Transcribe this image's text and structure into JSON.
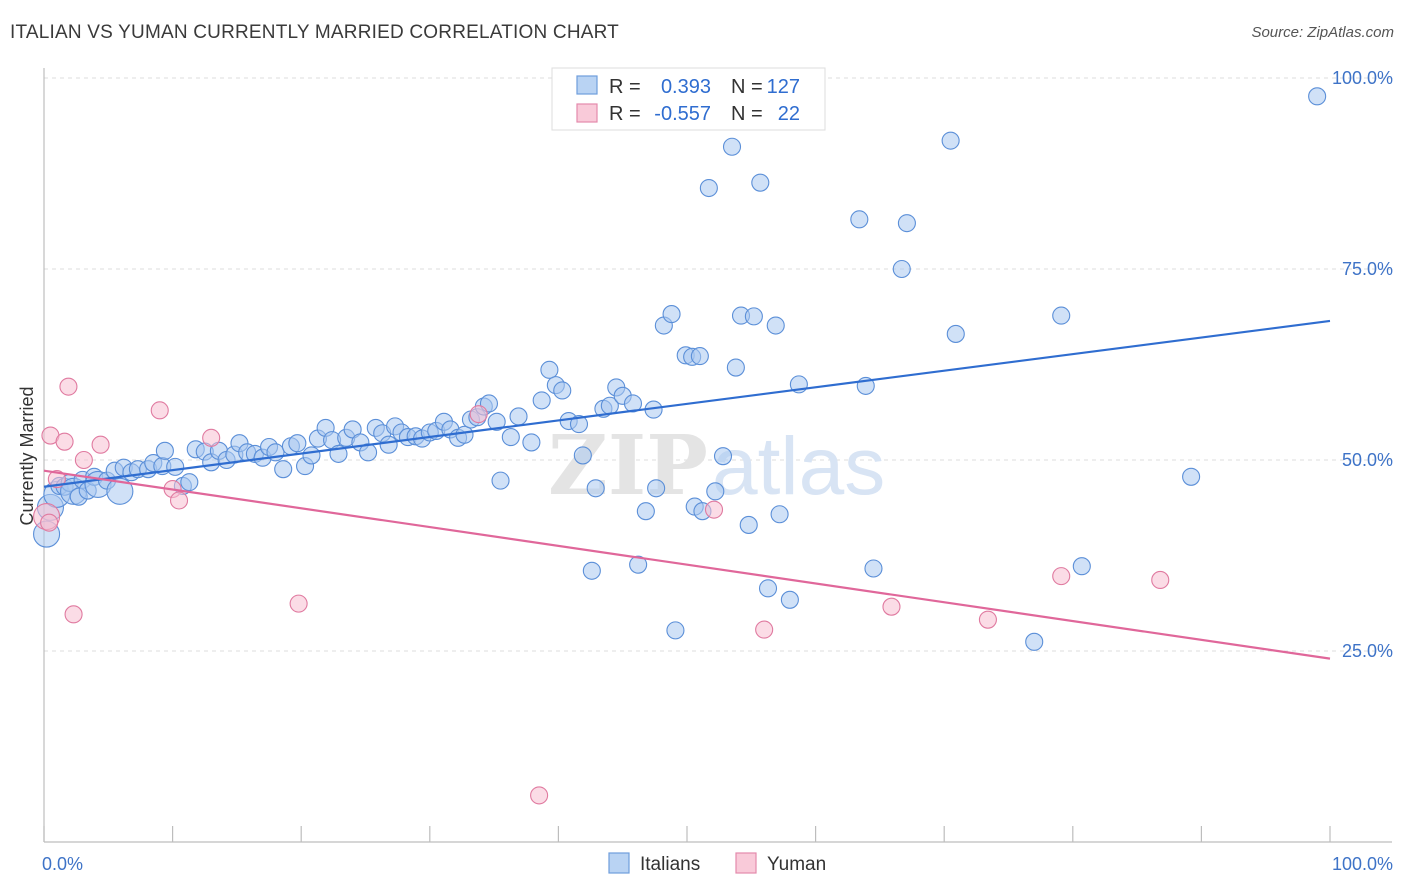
{
  "title": "ITALIAN VS YUMAN CURRENTLY MARRIED CORRELATION CHART",
  "source": "Source: ZipAtlas.com",
  "watermark": {
    "zip": "ZIP",
    "atlas": "atlas"
  },
  "colors": {
    "italians_fill": "#a9c8f0",
    "italians_stroke": "#5b8fd8",
    "italians_line": "#2f6dd0",
    "yuman_fill": "#f7c0d2",
    "yuman_stroke": "#e07aa0",
    "yuman_line": "#e0679a",
    "tick": "#3e73c7"
  },
  "legend_stats": [
    {
      "r_label": "R =",
      "r_value": "0.393",
      "n_label": "N =",
      "n_value": "127"
    },
    {
      "r_label": "R =",
      "r_value": "-0.557",
      "n_label": "N =",
      "n_value": "22"
    }
  ],
  "chart_data": {
    "type": "scatter",
    "title": "ITALIAN VS YUMAN CURRENTLY MARRIED CORRELATION CHART",
    "xlabel": "",
    "ylabel": "Currently Married",
    "xlim": [
      0,
      100
    ],
    "ylim": [
      0,
      100
    ],
    "x_tick_labels": [
      "0.0%",
      "100.0%"
    ],
    "y_tick_labels": [
      {
        "value": 25,
        "label": "25.0%"
      },
      {
        "value": 50,
        "label": "50.0%"
      },
      {
        "value": 75,
        "label": "75.0%"
      },
      {
        "value": 100,
        "label": "100.0%"
      }
    ],
    "grid": true,
    "legend_position": "bottom-center",
    "series": [
      {
        "name": "Italians",
        "trend": {
          "x": [
            0,
            100
          ],
          "y": [
            46.5,
            68.2
          ]
        },
        "points": [
          [
            0.2,
            40.3,
            2
          ],
          [
            0.5,
            43.8,
            2
          ],
          [
            1.0,
            45.5,
            2
          ],
          [
            1.2,
            46.6,
            1
          ],
          [
            1.6,
            46.5,
            1
          ],
          [
            2.0,
            47.0,
            1
          ],
          [
            2.3,
            45.9,
            2
          ],
          [
            2.7,
            45.2,
            1
          ],
          [
            3.0,
            47.4,
            1
          ],
          [
            3.4,
            46.0,
            1
          ],
          [
            3.9,
            47.8,
            1
          ],
          [
            4.2,
            46.8,
            2
          ],
          [
            4.9,
            47.3,
            1
          ],
          [
            5.5,
            48.6,
            1
          ],
          [
            5.9,
            45.9,
            2
          ],
          [
            6.2,
            49.0,
            1
          ],
          [
            6.8,
            48.4,
            1
          ],
          [
            7.3,
            48.8,
            1
          ],
          [
            8.1,
            48.8,
            1
          ],
          [
            8.5,
            49.6,
            1
          ],
          [
            9.2,
            49.2,
            1
          ],
          [
            9.4,
            51.2,
            1
          ],
          [
            10.2,
            49.1,
            1
          ],
          [
            10.8,
            46.6,
            1
          ],
          [
            11.3,
            47.1,
            1
          ],
          [
            11.8,
            51.4,
            1
          ],
          [
            12.5,
            51.1,
            1
          ],
          [
            13.0,
            49.7,
            1
          ],
          [
            13.6,
            51.2,
            1
          ],
          [
            14.2,
            50.0,
            1
          ],
          [
            14.8,
            50.7,
            1
          ],
          [
            15.2,
            52.2,
            1
          ],
          [
            15.8,
            51.0,
            1
          ],
          [
            16.4,
            50.8,
            1
          ],
          [
            17.0,
            50.3,
            1
          ],
          [
            17.5,
            51.7,
            1
          ],
          [
            18.0,
            51.0,
            1
          ],
          [
            18.6,
            48.8,
            1
          ],
          [
            19.2,
            51.8,
            1
          ],
          [
            19.7,
            52.2,
            1
          ],
          [
            20.3,
            49.2,
            1
          ],
          [
            20.8,
            50.6,
            1
          ],
          [
            21.3,
            52.8,
            1
          ],
          [
            21.9,
            54.2,
            1
          ],
          [
            22.4,
            52.6,
            1
          ],
          [
            22.9,
            50.8,
            1
          ],
          [
            23.5,
            52.9,
            1
          ],
          [
            24.0,
            54.0,
            1
          ],
          [
            24.6,
            52.3,
            1
          ],
          [
            25.2,
            51.0,
            1
          ],
          [
            25.8,
            54.2,
            1
          ],
          [
            26.3,
            53.5,
            1
          ],
          [
            26.8,
            52.0,
            1
          ],
          [
            27.3,
            54.4,
            1
          ],
          [
            27.8,
            53.6,
            1
          ],
          [
            28.3,
            53.0,
            1
          ],
          [
            28.9,
            53.1,
            1
          ],
          [
            29.4,
            52.8,
            1
          ],
          [
            30.0,
            53.6,
            1
          ],
          [
            30.5,
            53.8,
            1
          ],
          [
            31.1,
            55.0,
            1
          ],
          [
            31.6,
            54.0,
            1
          ],
          [
            32.2,
            52.9,
            1
          ],
          [
            32.7,
            53.3,
            1
          ],
          [
            33.2,
            55.3,
            1
          ],
          [
            33.7,
            55.6,
            1
          ],
          [
            34.2,
            57.0,
            1
          ],
          [
            34.6,
            57.4,
            1
          ],
          [
            35.2,
            55.0,
            1
          ],
          [
            35.5,
            47.3,
            1
          ],
          [
            36.3,
            53.0,
            1
          ],
          [
            36.9,
            55.7,
            1
          ],
          [
            37.9,
            52.3,
            1
          ],
          [
            38.7,
            57.8,
            1
          ],
          [
            39.3,
            61.8,
            1
          ],
          [
            39.8,
            59.8,
            1
          ],
          [
            40.3,
            59.1,
            1
          ],
          [
            40.8,
            55.1,
            1
          ],
          [
            41.6,
            54.7,
            1
          ],
          [
            41.9,
            50.6,
            1
          ],
          [
            42.6,
            35.5,
            1
          ],
          [
            42.9,
            46.3,
            1
          ],
          [
            43.5,
            56.7,
            1
          ],
          [
            44.0,
            57.1,
            1
          ],
          [
            44.5,
            59.5,
            1
          ],
          [
            45.0,
            58.4,
            1
          ],
          [
            45.8,
            57.4,
            1
          ],
          [
            46.2,
            36.3,
            1
          ],
          [
            46.8,
            43.3,
            1
          ],
          [
            47.4,
            56.6,
            1
          ],
          [
            47.6,
            46.3,
            1
          ],
          [
            48.2,
            67.6,
            1
          ],
          [
            48.8,
            69.1,
            1
          ],
          [
            49.1,
            27.7,
            1
          ],
          [
            49.9,
            63.7,
            1
          ],
          [
            50.4,
            63.5,
            1
          ],
          [
            51.0,
            63.6,
            1
          ],
          [
            50.6,
            43.9,
            1
          ],
          [
            51.2,
            43.3,
            1
          ],
          [
            51.7,
            85.6,
            1
          ],
          [
            52.2,
            45.9,
            1
          ],
          [
            52.8,
            50.5,
            1
          ],
          [
            53.5,
            91.0,
            1
          ],
          [
            53.8,
            62.1,
            1
          ],
          [
            54.2,
            68.9,
            1
          ],
          [
            54.8,
            41.5,
            1
          ],
          [
            55.2,
            68.8,
            1
          ],
          [
            55.7,
            86.3,
            1
          ],
          [
            56.3,
            33.2,
            1
          ],
          [
            56.9,
            67.6,
            1
          ],
          [
            57.2,
            42.9,
            1
          ],
          [
            58.0,
            31.7,
            1
          ],
          [
            58.7,
            59.9,
            1
          ],
          [
            63.4,
            81.5,
            1
          ],
          [
            63.9,
            59.7,
            1
          ],
          [
            64.5,
            35.8,
            1
          ],
          [
            66.7,
            75.0,
            1
          ],
          [
            67.1,
            81.0,
            1
          ],
          [
            70.5,
            91.8,
            1
          ],
          [
            70.9,
            66.5,
            1
          ],
          [
            77.0,
            26.2,
            1
          ],
          [
            79.1,
            68.9,
            1
          ],
          [
            80.7,
            36.1,
            1
          ],
          [
            89.2,
            47.8,
            1
          ],
          [
            99.0,
            97.6,
            1
          ]
        ]
      },
      {
        "name": "Yuman",
        "trend": {
          "x": [
            0,
            100
          ],
          "y": [
            48.6,
            24.0
          ]
        },
        "points": [
          [
            0.2,
            42.6,
            2
          ],
          [
            0.5,
            53.2,
            1
          ],
          [
            1.0,
            47.5,
            1
          ],
          [
            1.6,
            52.4,
            1
          ],
          [
            1.9,
            59.6,
            1
          ],
          [
            2.3,
            29.8,
            1
          ],
          [
            3.1,
            50.0,
            1
          ],
          [
            4.4,
            52.0,
            1
          ],
          [
            9.0,
            56.5,
            1
          ],
          [
            10.0,
            46.2,
            1
          ],
          [
            10.5,
            44.7,
            1
          ],
          [
            13.0,
            52.9,
            1
          ],
          [
            19.8,
            31.2,
            1
          ],
          [
            33.8,
            56.0,
            1
          ],
          [
            38.5,
            6.1,
            1
          ],
          [
            52.1,
            43.5,
            1
          ],
          [
            56.0,
            27.8,
            1
          ],
          [
            65.9,
            30.8,
            1
          ],
          [
            73.4,
            29.1,
            1
          ],
          [
            79.1,
            34.8,
            1
          ],
          [
            86.8,
            34.3,
            1
          ],
          [
            0.4,
            41.8,
            1
          ]
        ]
      }
    ]
  },
  "bottom_legend": [
    "Italians",
    "Yuman"
  ]
}
